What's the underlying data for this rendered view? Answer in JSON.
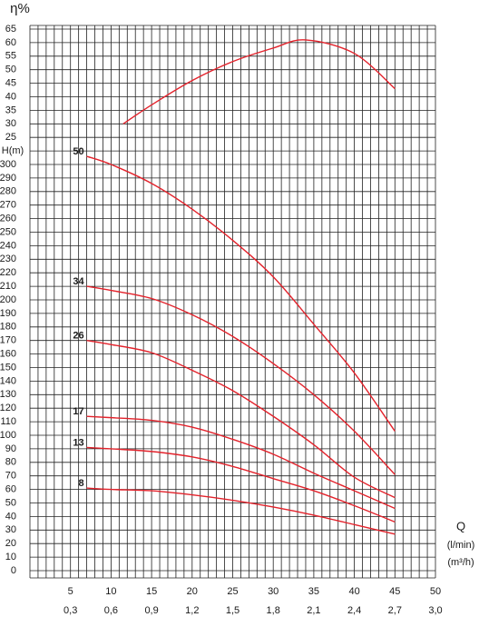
{
  "chart_data": {
    "type": "line",
    "y_axis_label": "H(m)",
    "y2_axis_label": "η%",
    "x_axis_label": "Q",
    "x_unit_label": "(l/min)",
    "x2_unit_label": "(m³/h)",
    "color": "#e3222b",
    "grid": true,
    "xlim": [
      0,
      50
    ],
    "xticks": [
      5,
      10,
      15,
      20,
      25,
      30,
      35,
      40,
      45,
      50
    ],
    "x2ticks": [
      {
        "value": 5,
        "label": "0,3"
      },
      {
        "value": 10,
        "label": "0,6"
      },
      {
        "value": 15,
        "label": "0,9"
      },
      {
        "value": 20,
        "label": "1,2"
      },
      {
        "value": 25,
        "label": "1,5"
      },
      {
        "value": 30,
        "label": "1,8"
      },
      {
        "value": 35,
        "label": "2,1"
      },
      {
        "value": 40,
        "label": "2,4"
      },
      {
        "value": 45,
        "label": "2,7"
      },
      {
        "value": 50,
        "label": "3,0"
      }
    ],
    "ylim": [
      0,
      400
    ],
    "yticks": [
      0,
      10,
      20,
      30,
      40,
      50,
      60,
      70,
      80,
      90,
      100,
      110,
      120,
      130,
      140,
      150,
      160,
      170,
      180,
      190,
      200,
      210,
      220,
      230,
      240,
      250,
      260,
      270,
      280,
      290,
      300
    ],
    "y2lim": [
      -135,
      65
    ],
    "y2ticks": [
      25,
      30,
      35,
      40,
      45,
      50,
      55,
      60,
      65
    ],
    "series": [
      {
        "name": "50",
        "x": [
          7,
          10,
          15,
          20,
          25,
          30,
          35,
          40,
          45
        ],
        "values": [
          306,
          300,
          286,
          267,
          244,
          217,
          182,
          146,
          103
        ]
      },
      {
        "name": "34",
        "x": [
          7,
          10,
          15,
          20,
          25,
          30,
          35,
          40,
          45
        ],
        "values": [
          210,
          207,
          201,
          189,
          173,
          153,
          130,
          103,
          71
        ]
      },
      {
        "name": "26",
        "x": [
          7,
          10,
          15,
          20,
          25,
          30,
          35,
          40,
          45
        ],
        "values": [
          170,
          167,
          161,
          148,
          133,
          114,
          93,
          69,
          54
        ]
      },
      {
        "name": "17",
        "x": [
          7,
          10,
          15,
          20,
          25,
          30,
          35,
          40,
          45
        ],
        "values": [
          114,
          113,
          111,
          106,
          97,
          86,
          72,
          59,
          46
        ]
      },
      {
        "name": "13",
        "x": [
          7,
          10,
          15,
          20,
          25,
          30,
          35,
          40,
          45
        ],
        "values": [
          91,
          90,
          88,
          84,
          77,
          68,
          59,
          48,
          36
        ]
      },
      {
        "name": "8",
        "x": [
          7,
          10,
          15,
          20,
          25,
          30,
          35,
          40,
          45
        ],
        "values": [
          61,
          60,
          59,
          56,
          52,
          47,
          41,
          34,
          27
        ]
      },
      {
        "axis": "y2",
        "x": [
          11.5,
          15,
          20,
          25,
          30,
          34,
          40,
          45
        ],
        "values": [
          30,
          37,
          46,
          53,
          58,
          61,
          56,
          43
        ]
      }
    ]
  }
}
